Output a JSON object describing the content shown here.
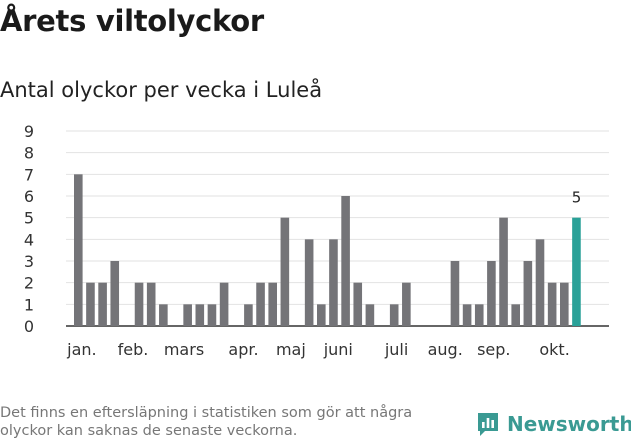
{
  "title": "Årets viltolyckor",
  "subtitle": "Antal olyckor per vecka i Luleå",
  "footnote": "Det finns en eftersläpning i statistiken som gör att några olyckor kan saknas de senaste veckorna.",
  "brand": {
    "name": "Newsworthy",
    "icon": "newsworthy-logo-icon",
    "color": "#3a9a93"
  },
  "chart_data": {
    "type": "bar",
    "x": [
      1,
      2,
      3,
      4,
      5,
      6,
      7,
      8,
      9,
      10,
      11,
      12,
      13,
      14,
      15,
      16,
      17,
      18,
      19,
      20,
      21,
      22,
      23,
      24,
      25,
      26,
      27,
      28,
      29,
      30,
      31,
      32,
      33,
      34,
      35,
      36,
      37,
      38,
      39,
      40,
      41,
      42
    ],
    "values": [
      7,
      2,
      2,
      3,
      0,
      2,
      2,
      1,
      0,
      1,
      1,
      1,
      2,
      0,
      1,
      2,
      2,
      5,
      0,
      4,
      1,
      4,
      6,
      2,
      1,
      0,
      1,
      2,
      0,
      0,
      0,
      3,
      1,
      1,
      3,
      5,
      1,
      3,
      4,
      2,
      2,
      5
    ],
    "ylim": [
      0,
      9
    ],
    "yticks": [
      0,
      1,
      2,
      3,
      4,
      5,
      6,
      7,
      8,
      9
    ],
    "month_labels": [
      {
        "label": "jan.",
        "at": 1.3
      },
      {
        "label": "feb.",
        "at": 5.5
      },
      {
        "label": "mars",
        "at": 9.7
      },
      {
        "label": "apr.",
        "at": 14.6
      },
      {
        "label": "maj",
        "at": 18.5
      },
      {
        "label": "juni",
        "at": 22.4
      },
      {
        "label": "juli",
        "at": 27.2
      },
      {
        "label": "aug.",
        "at": 31.2
      },
      {
        "label": "sep.",
        "at": 35.2
      },
      {
        "label": "okt.",
        "at": 40.2
      }
    ],
    "highlight": {
      "index": 41,
      "label": "5",
      "color": "#2aa198"
    },
    "bar_color": "#747478",
    "grid": true
  }
}
